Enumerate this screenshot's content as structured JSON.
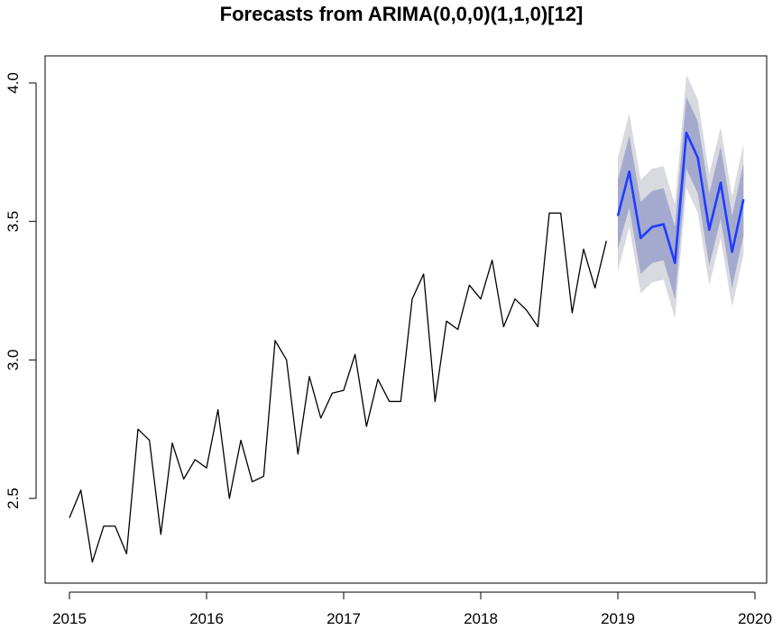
{
  "chart_data": {
    "type": "line",
    "title": "Forecasts from ARIMA(0,0,0)(1,1,0)[12]",
    "xlabel": "",
    "ylabel": "",
    "xlim": [
      2015,
      2020
    ],
    "ylim": [
      2.35,
      4.1
    ],
    "x_ticks": [
      2015,
      2016,
      2017,
      2018,
      2019,
      2020
    ],
    "x_tick_labels": [
      "2015",
      "2016",
      "2017",
      "2018",
      "2019",
      "2020"
    ],
    "y_ticks": [
      2.5,
      3.0,
      3.5,
      4.0
    ],
    "y_tick_labels": [
      "2.5",
      "3.0",
      "3.5",
      "4.0"
    ],
    "grid": false,
    "legend": "none",
    "colors": {
      "history": "#000000",
      "forecast": "#1f3cff",
      "band80": "#a3aacd",
      "band95": "#d9d9e0"
    },
    "series": [
      {
        "kind": "history",
        "start": 2015,
        "frequency": 12,
        "values": [
          2.43,
          2.53,
          2.27,
          2.4,
          2.4,
          2.3,
          2.75,
          2.71,
          2.37,
          2.7,
          2.57,
          2.64,
          2.61,
          2.82,
          2.5,
          2.71,
          2.56,
          2.58,
          3.07,
          3.0,
          2.66,
          2.94,
          2.79,
          2.88,
          2.89,
          3.02,
          2.76,
          2.93,
          2.85,
          2.85,
          3.22,
          3.31,
          2.85,
          3.14,
          3.11,
          3.27,
          3.22,
          3.36,
          3.12,
          3.22,
          3.18,
          3.12,
          3.53,
          3.53,
          3.17,
          3.4,
          3.26,
          3.43
        ]
      },
      {
        "kind": "forecast",
        "start": 2019,
        "frequency": 12,
        "values": [
          3.52,
          3.68,
          3.44,
          3.48,
          3.49,
          3.35,
          3.82,
          3.73,
          3.47,
          3.64,
          3.39,
          3.58
        ],
        "lo80": [
          3.4,
          3.55,
          3.31,
          3.35,
          3.36,
          3.22,
          3.69,
          3.6,
          3.34,
          3.51,
          3.26,
          3.45
        ],
        "hi80": [
          3.65,
          3.81,
          3.57,
          3.61,
          3.62,
          3.48,
          3.95,
          3.86,
          3.6,
          3.77,
          3.52,
          3.71
        ],
        "lo95": [
          3.32,
          3.48,
          3.24,
          3.28,
          3.29,
          3.15,
          3.62,
          3.53,
          3.27,
          3.44,
          3.19,
          3.38
        ],
        "hi95": [
          3.73,
          3.89,
          3.65,
          3.69,
          3.7,
          3.56,
          4.03,
          3.94,
          3.67,
          3.84,
          3.59,
          3.78
        ]
      }
    ]
  }
}
